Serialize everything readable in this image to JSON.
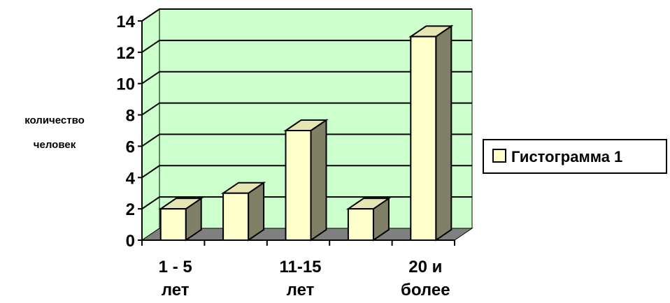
{
  "chart_data": {
    "type": "bar",
    "categories": [
      "1 - 5 лет",
      "",
      "11-15 лет",
      "",
      "20 и более"
    ],
    "category_labels": [
      [
        "1 - 5",
        "лет"
      ],
      [
        "",
        ""
      ],
      [
        "11-15",
        "лет"
      ],
      [
        "",
        ""
      ],
      [
        "20 и",
        "более"
      ]
    ],
    "series": [
      {
        "name": "Гистограмма 1",
        "values": [
          2,
          3,
          7,
          2,
          13
        ]
      }
    ],
    "y_ticks": [
      "0",
      "2",
      "4",
      "6",
      "8",
      "10",
      "12",
      "14"
    ],
    "ylabel_lines": [
      "количество",
      "человек"
    ],
    "ylim": [
      0,
      14
    ],
    "grid": true,
    "legend_position": "right",
    "three_d": true,
    "colors": {
      "wall": "#ccffcc",
      "floor": "#808080",
      "bar_front": "#ffffcc",
      "bar_top": "#e6e6b3",
      "bar_side": "#808066",
      "grid": "#000000",
      "axis": "#000000"
    }
  }
}
